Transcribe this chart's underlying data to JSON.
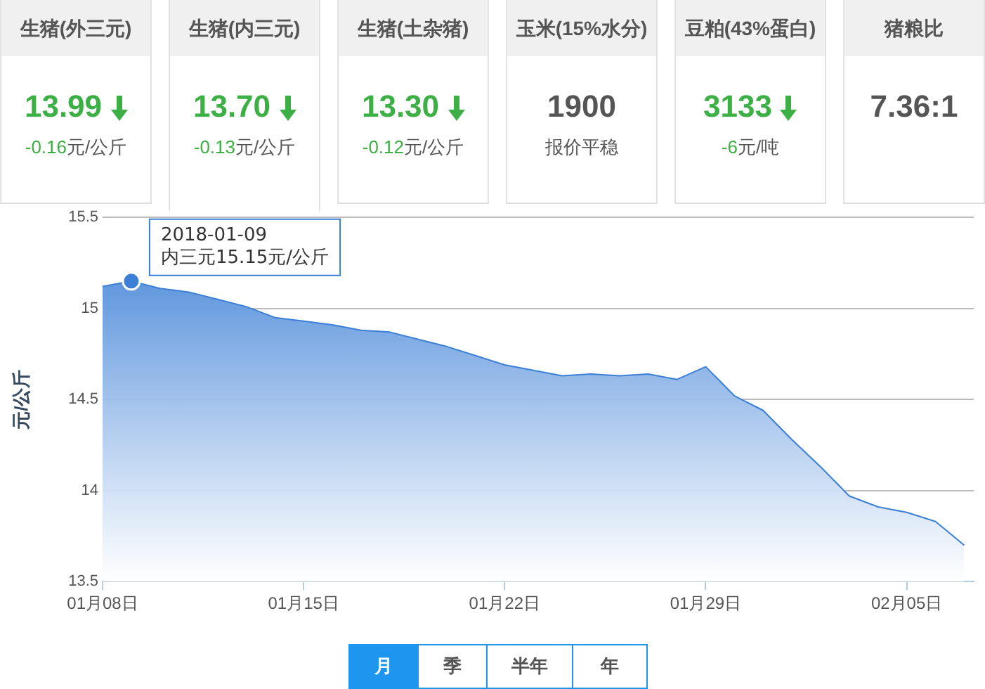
{
  "chart_data": [
    {
      "type": "other",
      "title": "生猪(外三元)",
      "color": "#3cb044",
      "annotations": [
        "13.99",
        "-0.16元/公斤"
      ]
    },
    {
      "type": "other",
      "title": "生猪(内三元)",
      "color": "#3cb044",
      "annotations": [
        "13.70",
        "-0.13元/公斤"
      ]
    },
    {
      "type": "other",
      "title": "生猪(土杂猪)",
      "color": "#3cb044",
      "annotations": [
        "13.30",
        "-0.12元/公斤"
      ]
    },
    {
      "type": "other",
      "title": "玉米(15%水分)",
      "annotations": [
        "1900",
        "报价平稳"
      ]
    },
    {
      "type": "other",
      "title": "豆粕(43%蛋白)",
      "color": "#3cb044",
      "annotations": [
        "3133",
        "-6元/吨"
      ]
    },
    {
      "type": "other",
      "title": "猪粮比",
      "annotations": [
        "7.36:1"
      ]
    },
    {
      "type": "area",
      "ylabel": "元/公斤",
      "grid": "y",
      "legend": false,
      "x": [
        "2018-01-08",
        "2018-01-09",
        "2018-01-10",
        "2018-01-11",
        "2018-01-12",
        "2018-01-13",
        "2018-01-14",
        "2018-01-15",
        "2018-01-16",
        "2018-01-17",
        "2018-01-18",
        "2018-01-19",
        "2018-01-20",
        "2018-01-21",
        "2018-01-22",
        "2018-01-23",
        "2018-01-24",
        "2018-01-25",
        "2018-01-26",
        "2018-01-27",
        "2018-01-28",
        "2018-01-29",
        "2018-01-30",
        "2018-01-31",
        "2018-02-01",
        "2018-02-02",
        "2018-02-03",
        "2018-02-04",
        "2018-02-05",
        "2018-02-06",
        "2018-02-07"
      ],
      "series": [
        {
          "color": "#3b7fd6",
          "values": [
            15.12,
            15.15,
            15.11,
            15.09,
            15.05,
            15.01,
            14.95,
            14.93,
            14.91,
            14.88,
            14.87,
            14.83,
            14.79,
            14.74,
            14.69,
            14.66,
            14.63,
            14.64,
            14.63,
            14.64,
            14.61,
            14.68,
            14.52,
            14.44,
            14.28,
            14.13,
            13.97,
            13.91,
            13.88,
            13.83,
            13.7
          ]
        }
      ],
      "xlim": [
        "2018-01-08",
        "2018-02-07T08:00"
      ],
      "xticks": [
        {
          "value": "2018-01-08",
          "label": "01月08日"
        },
        {
          "value": "2018-01-15",
          "label": "01月15日"
        },
        {
          "value": "2018-01-22",
          "label": "01月22日"
        },
        {
          "value": "2018-01-29",
          "label": "01月29日"
        },
        {
          "value": "2018-02-05",
          "label": "02月05日"
        }
      ],
      "ylim": [
        13.5,
        15.5
      ],
      "yticks": [
        13.5,
        14,
        14.5,
        15,
        15.5
      ],
      "annotations": [
        {
          "text": "2018-01-09\n内三元15.15元/公斤",
          "x": "2018-01-09",
          "y": 15.15
        }
      ]
    },
    {
      "type": "other",
      "annotations": [
        "月",
        "季",
        "半年",
        "年"
      ],
      "colors": [
        "#1e96f0",
        null,
        null,
        null
      ]
    }
  ]
}
